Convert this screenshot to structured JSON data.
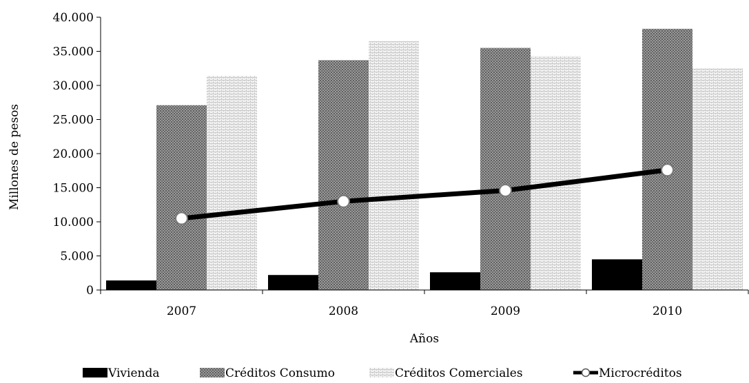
{
  "chart_data": {
    "type": "bar",
    "categories": [
      "2007",
      "2008",
      "2009",
      "2010"
    ],
    "series": [
      {
        "name": "Vivienda",
        "kind": "bar",
        "pattern": "solid",
        "color": "#000000",
        "values": [
          1400,
          2200,
          2600,
          4500
        ]
      },
      {
        "name": "Créditos Consumo",
        "kind": "bar",
        "pattern": "dots-dark",
        "color": "#8c8c8c",
        "values": [
          27100,
          33700,
          35500,
          38300
        ]
      },
      {
        "name": "Créditos Comerciales",
        "kind": "bar",
        "pattern": "brick-light",
        "color": "#e6e6e6",
        "values": [
          31400,
          36500,
          34300,
          32500
        ]
      },
      {
        "name": "Microcréditos",
        "kind": "line",
        "marker": "open-circle",
        "color": "#000000",
        "values": [
          10500,
          13000,
          14600,
          17600
        ]
      }
    ],
    "xlabel": "Años",
    "ylabel": "Millones de pesos",
    "ylim": [
      0,
      40000
    ],
    "yticks": [
      {
        "value": 0,
        "label": "0"
      },
      {
        "value": 5000,
        "label": "5.000"
      },
      {
        "value": 10000,
        "label": "10.000"
      },
      {
        "value": 15000,
        "label": "15.000"
      },
      {
        "value": 20000,
        "label": "20.000"
      },
      {
        "value": 25000,
        "label": "25.000"
      },
      {
        "value": 30000,
        "label": "30.000"
      },
      {
        "value": 35000,
        "label": "35.000"
      },
      {
        "value": 40000,
        "label": "40.000"
      }
    ],
    "grid": false,
    "legend_position": "bottom"
  }
}
